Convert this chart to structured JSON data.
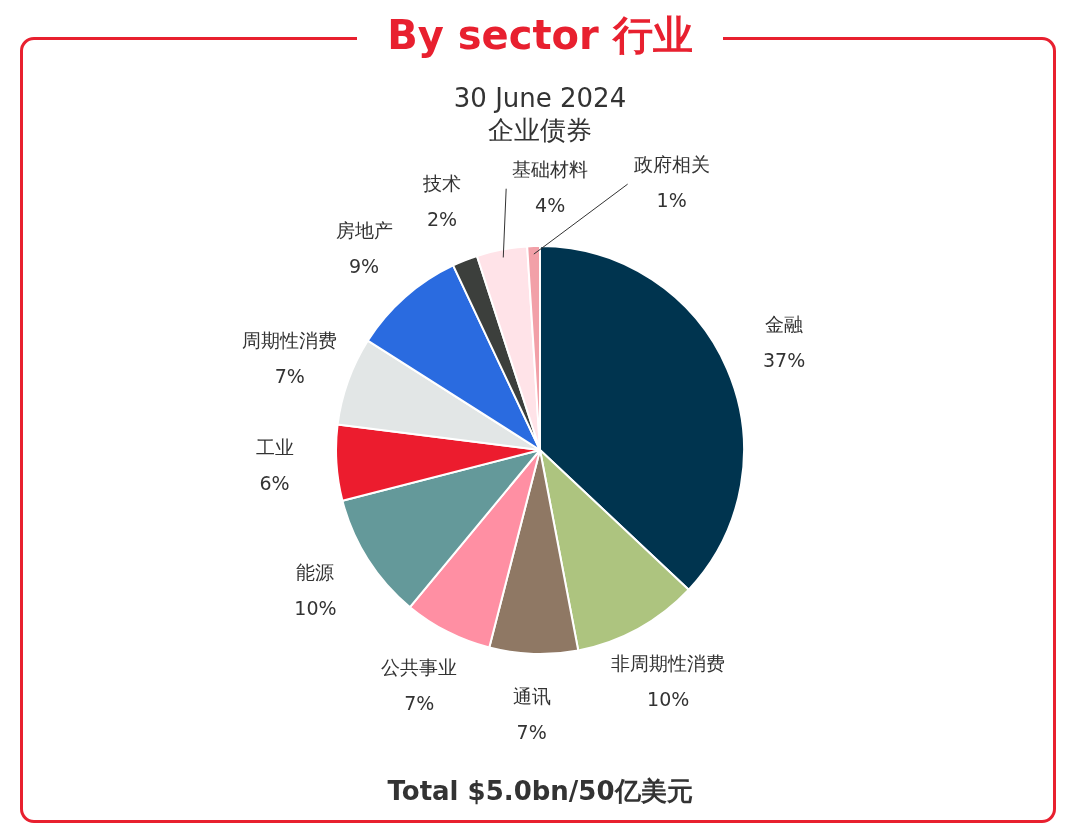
{
  "chart_data": {
    "type": "pie",
    "title": "By sector 行业",
    "subtitle": "30 June 2024\n企业债券",
    "categories": [
      "金融",
      "非周期性消费",
      "通讯",
      "公共事业",
      "能源",
      "工业",
      "周期性消费",
      "房地产",
      "技术",
      "基础材料",
      "政府相关"
    ],
    "values": [
      37,
      10,
      7,
      7,
      10,
      6,
      7,
      9,
      2,
      4,
      1
    ],
    "value_labels": [
      "37%",
      "10%",
      "7%",
      "7%",
      "10%",
      "6%",
      "7%",
      "9%",
      "2%",
      "4%",
      "1%"
    ],
    "colors": [
      "#00344f",
      "#adc47f",
      "#8f7864",
      "#ff8fa3",
      "#64999a",
      "#ec1c2e",
      "#e2e6e6",
      "#2a6be0",
      "#3c3f3c",
      "#ffe3e8",
      "#f2a0a8"
    ],
    "annotations": [
      "Total $5.0bn/50亿美元"
    ]
  }
}
